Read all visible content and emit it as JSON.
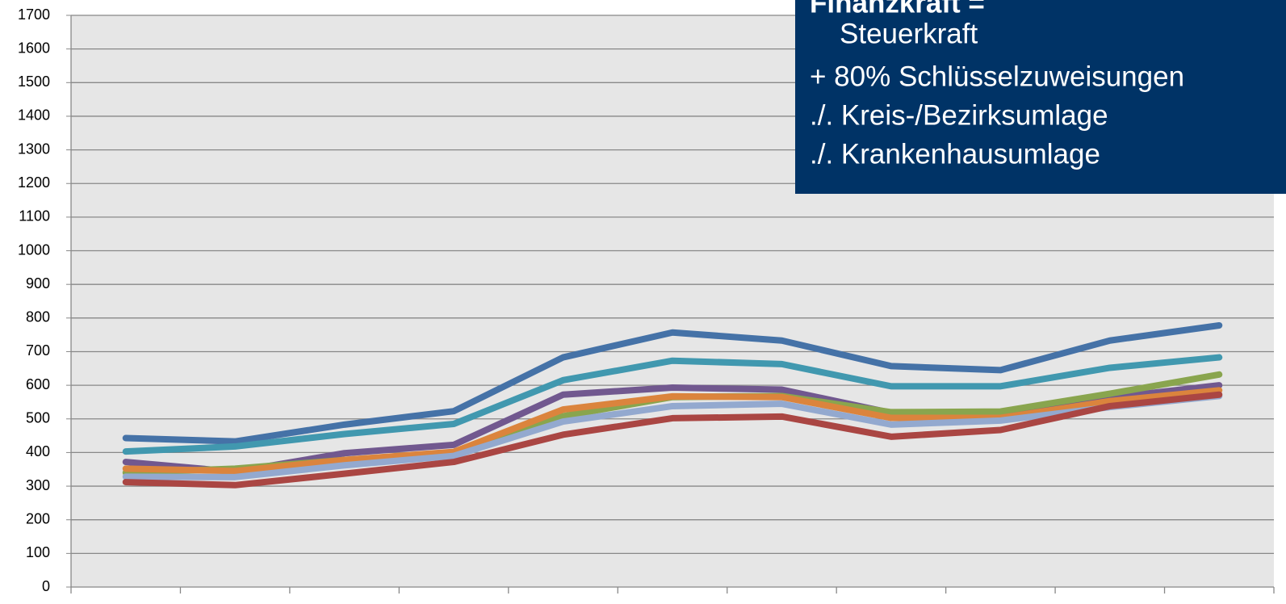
{
  "chart_data": {
    "type": "line",
    "categories": [
      null,
      null,
      null,
      null,
      null,
      null,
      null,
      null,
      null,
      null,
      null
    ],
    "series": [
      {
        "color": "#4572a7",
        "values": [
          443,
          433,
          483,
          523,
          683,
          757,
          733,
          657,
          645,
          733,
          778
        ]
      },
      {
        "color": "#4198af",
        "values": [
          403,
          418,
          455,
          485,
          615,
          673,
          663,
          597,
          597,
          652,
          683
        ]
      },
      {
        "color": "#71588f",
        "values": [
          372,
          343,
          398,
          423,
          572,
          593,
          587,
          518,
          510,
          563,
          600
        ]
      },
      {
        "color": "#89a54e",
        "values": [
          340,
          352,
          378,
          400,
          508,
          565,
          568,
          520,
          522,
          575,
          632
        ]
      },
      {
        "color": "#db843d",
        "values": [
          352,
          345,
          378,
          402,
          528,
          567,
          565,
          503,
          503,
          553,
          585
        ]
      },
      {
        "color": "#93a9cf",
        "values": [
          328,
          327,
          362,
          390,
          492,
          538,
          545,
          483,
          495,
          535,
          568
        ]
      },
      {
        "color": "#aa4643",
        "values": [
          312,
          303,
          337,
          372,
          453,
          502,
          507,
          447,
          467,
          538,
          572
        ]
      }
    ],
    "ylim": [
      0,
      1700
    ],
    "yticks": [
      0,
      100,
      200,
      300,
      400,
      500,
      600,
      700,
      800,
      900,
      1000,
      1100,
      1200,
      1300,
      1400,
      1500,
      1600,
      1700
    ],
    "grid": true,
    "annotation": [
      "Finanzkraft =",
      "Steuerkraft",
      "+ 80% Schlüsselzuweisungen",
      "./. Kreis-/Bezirksumlage",
      "./. Krankenhausumlage"
    ]
  }
}
